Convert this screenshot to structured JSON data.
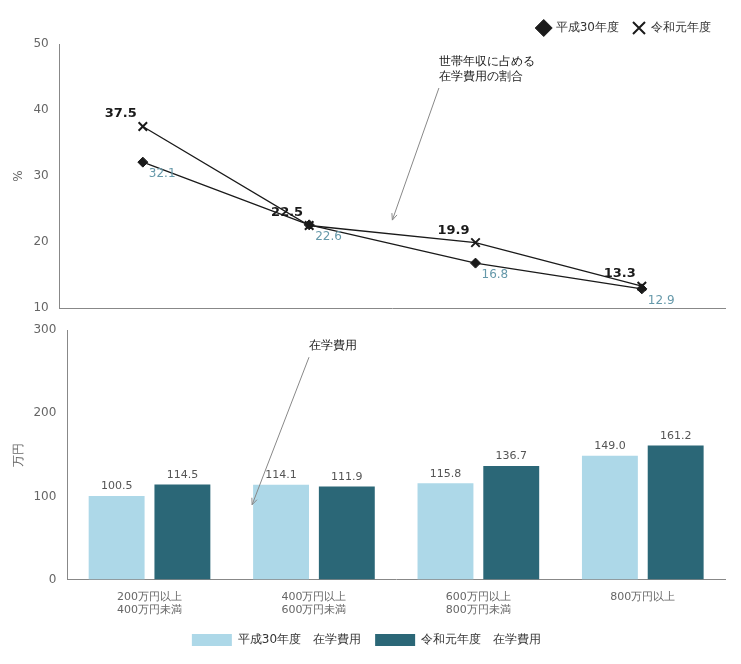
{
  "chart_data": [
    {
      "type": "line",
      "categories": [
        null,
        null,
        null,
        null
      ],
      "series": [
        {
          "name": "平成30年度",
          "color": "#1a1a1a",
          "marker": "diamond",
          "values": [
            32.1,
            22.6,
            16.8,
            12.9
          ]
        },
        {
          "name": "令和元年度",
          "color": "#1a1a1a",
          "marker": "x",
          "values": [
            37.5,
            22.5,
            19.9,
            13.3
          ]
        }
      ],
      "ylabel": "%",
      "ylim": [
        10,
        50
      ],
      "yticks": [
        10,
        20,
        30,
        40,
        50
      ],
      "grid": false,
      "legend": "upper right",
      "data_labels": true,
      "tick_labels": "y",
      "annotation": "世帯年収に占める\n在学費用の割合"
    },
    {
      "type": "bar",
      "categories": [
        "200万円以上\n400万円未満",
        "400万円以上\n600万円未満",
        "600万円以上\n800万円未満",
        "800万円以上"
      ],
      "series": [
        {
          "name": "平成30年度　在学費用",
          "color": "#add8e8",
          "values": [
            100.5,
            114.1,
            115.8,
            149.0
          ],
          "value_labels": [
            "100.5",
            "114.1",
            "115.8",
            "149.0"
          ]
        },
        {
          "name": "令和元年度　在学費用",
          "color": "#2b6777",
          "values": [
            114.5,
            111.9,
            136.7,
            161.2
          ],
          "value_labels": [
            "114.5",
            "111.9",
            "136.7",
            "161.2"
          ]
        }
      ],
      "ylabel": "万円",
      "ylim": [
        0,
        300
      ],
      "yticks": [
        0,
        100,
        200,
        300
      ],
      "grid": false,
      "legend": "bottom",
      "data_labels": true,
      "annotation": "在学費用"
    }
  ]
}
